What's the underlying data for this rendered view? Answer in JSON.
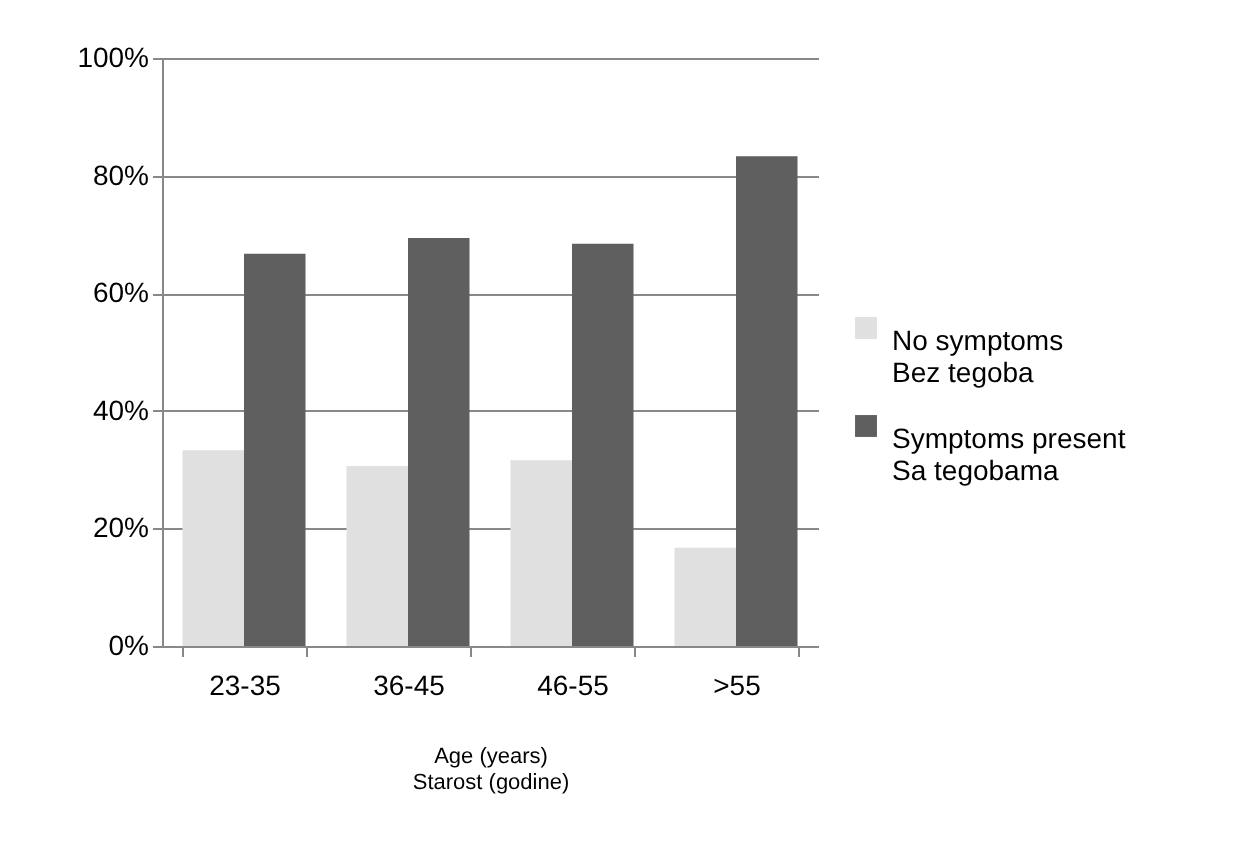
{
  "chart_data": {
    "type": "bar",
    "xlabel": "Age (years)\nStarost (godine)",
    "categories": [
      "23-35",
      "36-45",
      "46-55",
      ">55"
    ],
    "series": [
      {
        "name": "No symptoms\nBez tegoba",
        "color": "#e0e0e0",
        "values": [
          33.3,
          30.6,
          31.6,
          16.7
        ]
      },
      {
        "name": "Symptoms present\nSa tegobama",
        "color": "#5f5f5f",
        "values": [
          66.7,
          69.4,
          68.4,
          83.3
        ]
      }
    ],
    "ylim": [
      0,
      100
    ],
    "yticks": [
      {
        "value": 0,
        "label": "0%"
      },
      {
        "value": 20,
        "label": "20%"
      },
      {
        "value": 40,
        "label": "40%"
      },
      {
        "value": 60,
        "label": "60%"
      },
      {
        "value": 80,
        "label": "80%"
      },
      {
        "value": 100,
        "label": "100%"
      }
    ],
    "grid": "y",
    "legend": "right"
  }
}
